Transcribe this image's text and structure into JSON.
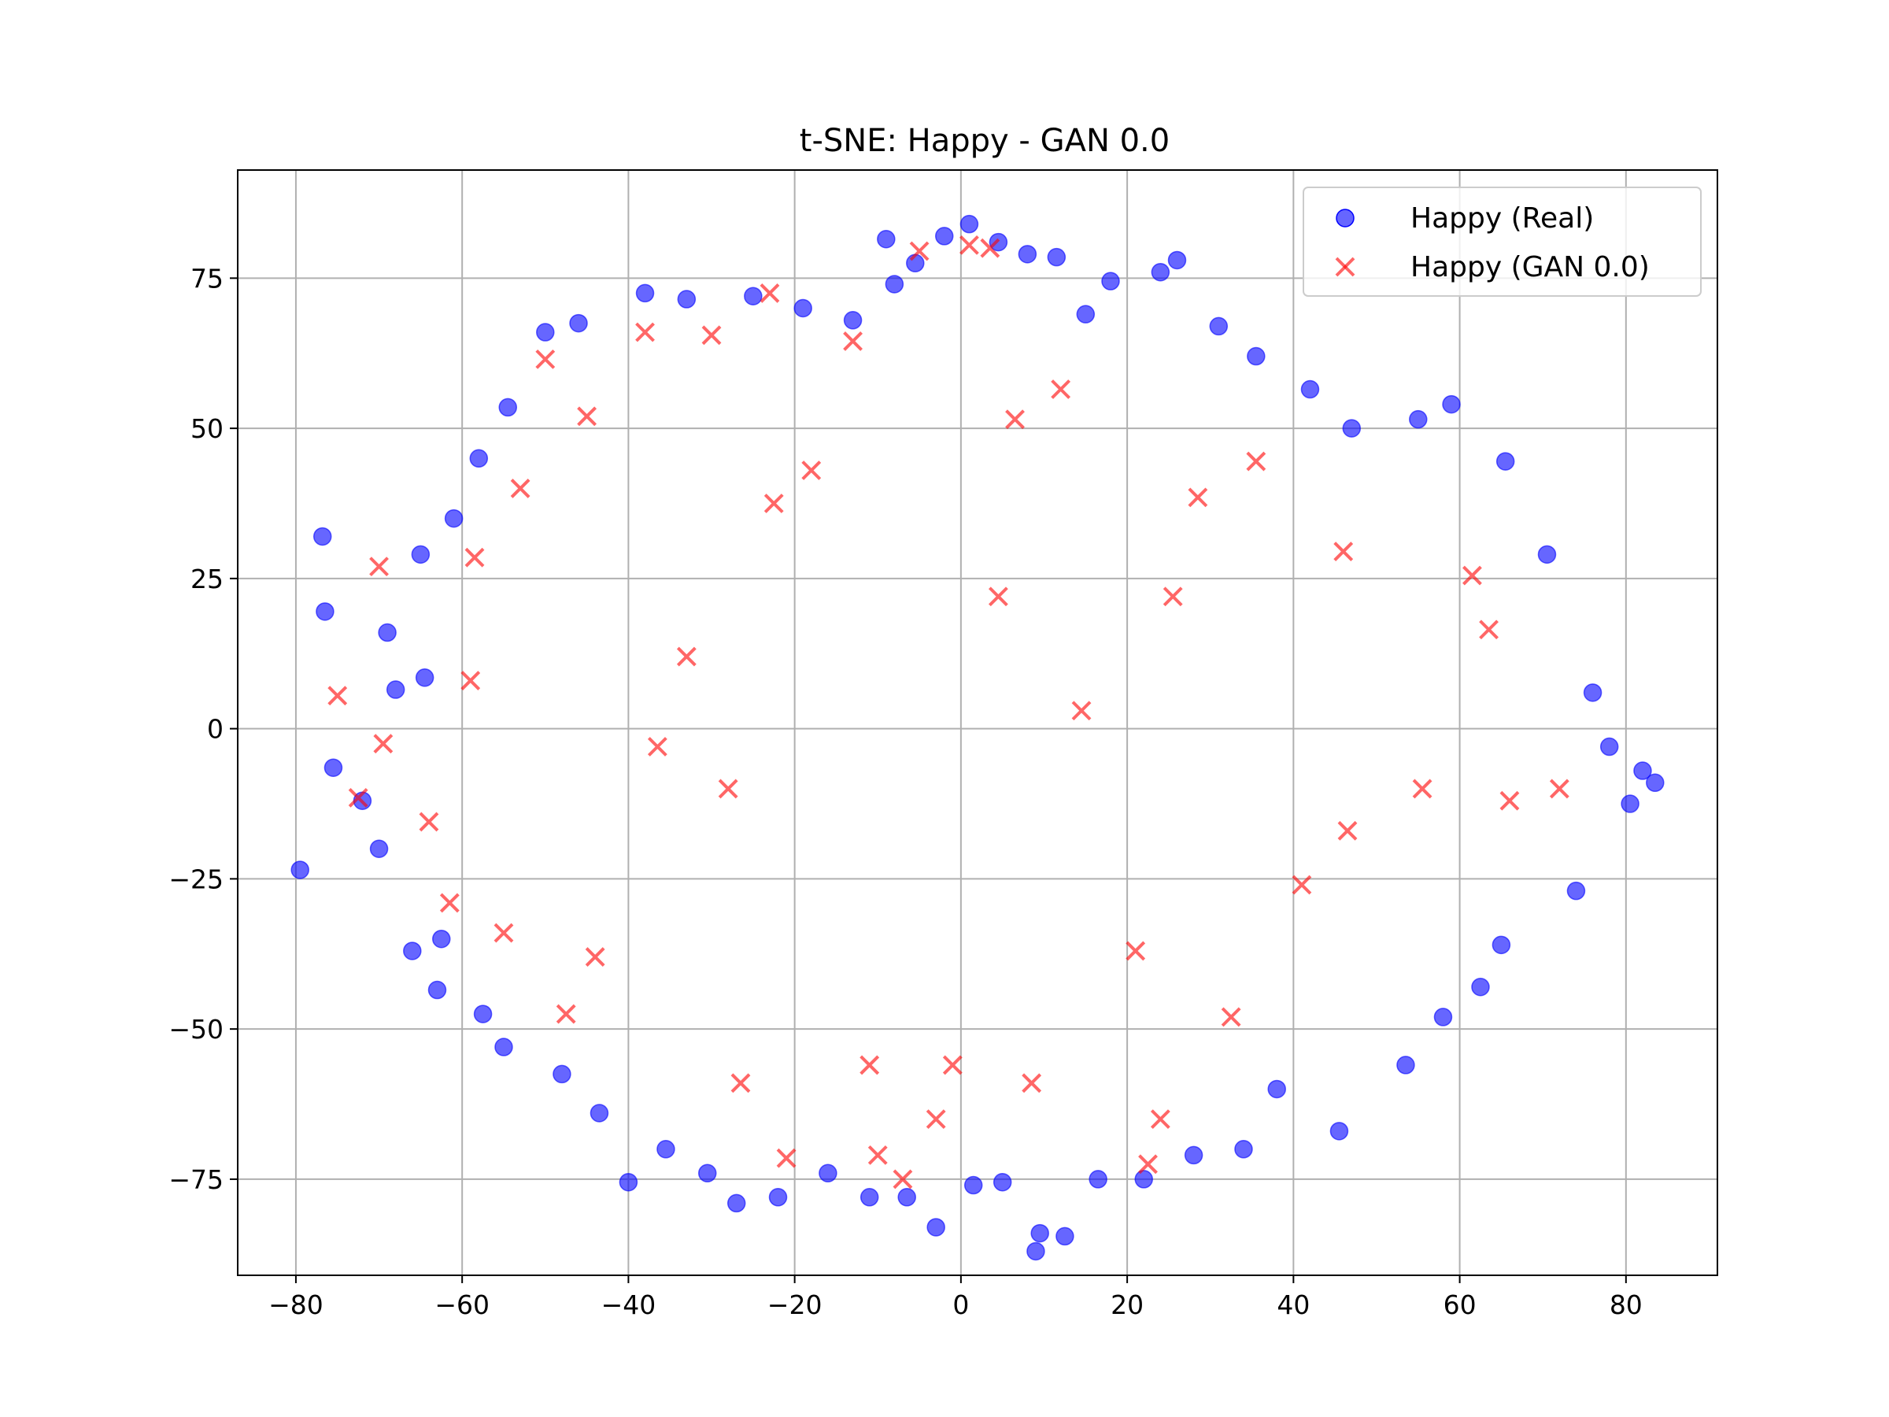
{
  "chart_data": {
    "type": "scatter",
    "title": "t-SNE: Happy - GAN 0.0",
    "xlabel": "",
    "ylabel": "",
    "xlim": [
      -87,
      91
    ],
    "ylim": [
      -91,
      93
    ],
    "grid": true,
    "legend_position": "top-right",
    "x_ticks": [
      -80,
      -60,
      -40,
      -20,
      0,
      20,
      40,
      60,
      80
    ],
    "y_ticks": [
      -75,
      -50,
      -25,
      0,
      25,
      50,
      75
    ],
    "x_tick_labels": [
      "−80",
      "−60",
      "−40",
      "−20",
      "0",
      "20",
      "40",
      "60",
      "80"
    ],
    "y_tick_labels": [
      "−75",
      "−50",
      "−25",
      "0",
      "25",
      "50",
      "75"
    ],
    "series": [
      {
        "name": "Happy (Real)",
        "marker": "circle",
        "color": "#0000ff",
        "alpha": 0.6,
        "points": [
          [
            -79.5,
            -23.5
          ],
          [
            -76.8,
            32.0
          ],
          [
            -76.5,
            19.5
          ],
          [
            -75.5,
            -6.5
          ],
          [
            -72.0,
            -12.0
          ],
          [
            -70.0,
            -20.0
          ],
          [
            -69.0,
            16.0
          ],
          [
            -68.0,
            6.5
          ],
          [
            -66.0,
            -37.0
          ],
          [
            -65.0,
            29.0
          ],
          [
            -64.5,
            8.5
          ],
          [
            -63.0,
            -43.5
          ],
          [
            -62.5,
            -35.0
          ],
          [
            -61.0,
            35.0
          ],
          [
            -58.0,
            45.0
          ],
          [
            -57.5,
            -47.5
          ],
          [
            -55.0,
            -53.0
          ],
          [
            -54.5,
            53.5
          ],
          [
            -50.0,
            66.0
          ],
          [
            -48.0,
            -57.5
          ],
          [
            -46.0,
            67.5
          ],
          [
            -43.5,
            -64.0
          ],
          [
            -40.0,
            -75.5
          ],
          [
            -38.0,
            72.5
          ],
          [
            -35.5,
            -70.0
          ],
          [
            -33.0,
            71.5
          ],
          [
            -30.5,
            -74.0
          ],
          [
            -27.0,
            -79.0
          ],
          [
            -25.0,
            72.0
          ],
          [
            -22.0,
            -78.0
          ],
          [
            -19.0,
            70.0
          ],
          [
            -16.0,
            -74.0
          ],
          [
            -13.0,
            68.0
          ],
          [
            -11.0,
            -78.0
          ],
          [
            -9.0,
            81.5
          ],
          [
            -8.0,
            74.0
          ],
          [
            -6.5,
            -78.0
          ],
          [
            -5.5,
            77.5
          ],
          [
            -3.0,
            -83.0
          ],
          [
            -2.0,
            82.0
          ],
          [
            1.0,
            84.0
          ],
          [
            1.5,
            -76.0
          ],
          [
            4.5,
            81.0
          ],
          [
            5.0,
            -75.5
          ],
          [
            8.0,
            79.0
          ],
          [
            9.0,
            -87.0
          ],
          [
            9.5,
            -84.0
          ],
          [
            11.5,
            78.5
          ],
          [
            12.5,
            -84.5
          ],
          [
            15.0,
            69.0
          ],
          [
            16.5,
            -75.0
          ],
          [
            18.0,
            74.5
          ],
          [
            22.0,
            -75.0
          ],
          [
            24.0,
            76.0
          ],
          [
            26.0,
            78.0
          ],
          [
            28.0,
            -71.0
          ],
          [
            31.0,
            67.0
          ],
          [
            34.0,
            -70.0
          ],
          [
            35.5,
            62.0
          ],
          [
            38.0,
            -60.0
          ],
          [
            42.0,
            56.5
          ],
          [
            45.5,
            -67.0
          ],
          [
            47.0,
            50.0
          ],
          [
            53.5,
            -56.0
          ],
          [
            55.0,
            51.5
          ],
          [
            58.0,
            -48.0
          ],
          [
            59.0,
            54.0
          ],
          [
            62.5,
            -43.0
          ],
          [
            65.5,
            44.5
          ],
          [
            65.0,
            -36.0
          ],
          [
            70.5,
            29.0
          ],
          [
            74.0,
            -27.0
          ],
          [
            76.0,
            6.0
          ],
          [
            80.5,
            -12.5
          ],
          [
            82.0,
            -7.0
          ],
          [
            83.5,
            -9.0
          ],
          [
            78.0,
            -3.0
          ]
        ]
      },
      {
        "name": "Happy (GAN 0.0)",
        "marker": "x",
        "color": "#ff0000",
        "alpha": 0.6,
        "points": [
          [
            -75.0,
            5.5
          ],
          [
            -72.5,
            -11.5
          ],
          [
            -70.0,
            27.0
          ],
          [
            -69.5,
            -2.5
          ],
          [
            -64.0,
            -15.5
          ],
          [
            -61.5,
            -29.0
          ],
          [
            -59.0,
            8.0
          ],
          [
            -58.5,
            28.5
          ],
          [
            -55.0,
            -34.0
          ],
          [
            -53.0,
            40.0
          ],
          [
            -50.0,
            61.5
          ],
          [
            -47.5,
            -47.5
          ],
          [
            -45.0,
            52.0
          ],
          [
            -44.0,
            -38.0
          ],
          [
            -38.0,
            66.0
          ],
          [
            -36.5,
            -3.0
          ],
          [
            -33.0,
            12.0
          ],
          [
            -30.0,
            65.5
          ],
          [
            -28.0,
            -10.0
          ],
          [
            -26.5,
            -59.0
          ],
          [
            -23.0,
            72.5
          ],
          [
            -22.5,
            37.5
          ],
          [
            -21.0,
            -71.5
          ],
          [
            -18.0,
            43.0
          ],
          [
            -13.0,
            64.5
          ],
          [
            -11.0,
            -56.0
          ],
          [
            -10.0,
            -71.0
          ],
          [
            -7.0,
            -75.0
          ],
          [
            -5.0,
            79.5
          ],
          [
            -3.0,
            -65.0
          ],
          [
            -1.0,
            -56.0
          ],
          [
            1.0,
            80.5
          ],
          [
            3.5,
            80.0
          ],
          [
            4.5,
            22.0
          ],
          [
            6.5,
            51.5
          ],
          [
            8.5,
            -59.0
          ],
          [
            12.0,
            56.5
          ],
          [
            14.5,
            3.0
          ],
          [
            21.0,
            -37.0
          ],
          [
            22.5,
            -72.5
          ],
          [
            24.0,
            -65.0
          ],
          [
            25.5,
            22.0
          ],
          [
            28.5,
            38.5
          ],
          [
            32.5,
            -48.0
          ],
          [
            35.5,
            44.5
          ],
          [
            41.0,
            -26.0
          ],
          [
            46.0,
            29.5
          ],
          [
            46.5,
            -17.0
          ],
          [
            55.5,
            -10.0
          ],
          [
            61.5,
            25.5
          ],
          [
            63.5,
            16.5
          ],
          [
            66.0,
            -12.0
          ],
          [
            72.0,
            -10.0
          ]
        ]
      }
    ]
  }
}
